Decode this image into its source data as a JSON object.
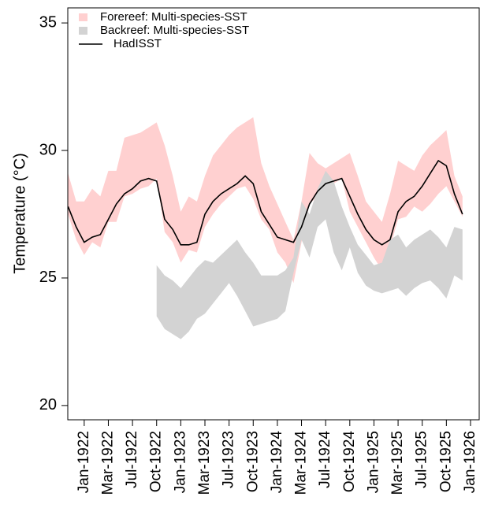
{
  "chart_data": {
    "type": "line",
    "ylabel": "Temperature (°C)",
    "legend": "top-left",
    "x": [
      1921.833,
      1921.917,
      1922,
      1922.083,
      1922.167,
      1922.25,
      1922.333,
      1922.417,
      1922.5,
      1922.583,
      1922.667,
      1922.75,
      1922.833,
      1922.917,
      1923,
      1923.083,
      1923.167,
      1923.25,
      1923.333,
      1923.417,
      1923.5,
      1923.583,
      1923.667,
      1923.75,
      1923.833,
      1923.917,
      1924,
      1924.083,
      1924.167,
      1924.25,
      1924.333,
      1924.417,
      1924.5,
      1924.583,
      1924.667,
      1924.75,
      1924.833,
      1924.917,
      1925,
      1925.083,
      1925.167,
      1925.25,
      1925.333,
      1925.417,
      1925.5,
      1925.583,
      1925.667,
      1925.75,
      1925.833,
      1925.917
    ],
    "series": [
      {
        "name": "Forereef: Multi-species-SST",
        "type": "band",
        "color": "#ffd0d0",
        "upper": [
          29.1,
          28.0,
          28.0,
          28.5,
          28.2,
          29.2,
          29.2,
          30.5,
          30.6,
          30.7,
          30.9,
          31.1,
          30.2,
          29.0,
          27.6,
          28.2,
          28.0,
          29.0,
          29.8,
          30.2,
          30.6,
          30.9,
          31.1,
          31.3,
          29.5,
          28.6,
          27.9,
          27.2,
          26.5,
          28.0,
          29.9,
          29.5,
          29.3,
          29.5,
          29.7,
          29.9,
          29.0,
          28.0,
          27.6,
          27.2,
          28.3,
          29.6,
          29.4,
          29.2,
          29.8,
          30.2,
          30.5,
          30.8,
          29.0,
          28.2
        ],
        "lower": [
          27.5,
          26.5,
          25.9,
          26.4,
          26.2,
          27.2,
          27.2,
          28.2,
          28.3,
          28.5,
          28.6,
          28.9,
          26.8,
          26.4,
          25.6,
          26.1,
          26.0,
          27.0,
          27.5,
          27.9,
          28.2,
          28.5,
          28.6,
          28.1,
          27.3,
          26.9,
          26.0,
          25.6,
          24.8,
          26.4,
          27.9,
          28.2,
          28.5,
          28.7,
          28.9,
          27.6,
          27.0,
          26.4,
          25.8,
          25.3,
          26.2,
          27.3,
          27.4,
          27.8,
          27.6,
          27.9,
          28.3,
          28.6,
          28.0,
          27.4
        ]
      },
      {
        "name": "Backreef: Multi-species-SST",
        "type": "band",
        "color": "#d3d3d3",
        "upper": [
          null,
          null,
          null,
          null,
          null,
          null,
          null,
          null,
          null,
          null,
          null,
          25.5,
          25.1,
          24.9,
          24.6,
          25.0,
          25.4,
          25.7,
          25.6,
          25.9,
          26.2,
          26.5,
          26.0,
          25.6,
          25.1,
          25.1,
          25.1,
          25.3,
          25.8,
          28.0,
          27.5,
          28.5,
          29.2,
          28.8,
          27.8,
          27.0,
          26.3,
          25.9,
          25.5,
          25.6,
          26.5,
          26.7,
          26.2,
          26.5,
          26.7,
          26.9,
          26.6,
          26.2,
          27.0,
          26.9
        ],
        "lower": [
          null,
          null,
          null,
          null,
          null,
          null,
          null,
          null,
          null,
          null,
          null,
          23.5,
          23.0,
          22.8,
          22.6,
          22.9,
          23.4,
          23.6,
          24.0,
          24.4,
          24.8,
          24.3,
          23.7,
          23.1,
          23.2,
          23.3,
          23.4,
          23.7,
          25.2,
          26.5,
          25.8,
          27.0,
          27.3,
          26.0,
          25.3,
          26.2,
          25.2,
          24.7,
          24.5,
          24.4,
          24.5,
          24.6,
          24.3,
          24.6,
          24.8,
          24.9,
          24.6,
          24.2,
          25.1,
          24.9
        ]
      },
      {
        "name": "HadISST",
        "type": "line",
        "color": "#000000",
        "values": [
          27.8,
          27.0,
          26.4,
          26.6,
          26.7,
          27.3,
          27.9,
          28.3,
          28.5,
          28.8,
          28.9,
          28.8,
          27.3,
          26.9,
          26.3,
          26.3,
          26.4,
          27.5,
          28.0,
          28.3,
          28.5,
          28.7,
          29.0,
          28.7,
          27.6,
          27.1,
          26.6,
          26.5,
          26.4,
          27.0,
          27.9,
          28.4,
          28.7,
          28.8,
          28.9,
          28.2,
          27.5,
          26.9,
          26.5,
          26.3,
          26.5,
          27.6,
          28.0,
          28.2,
          28.6,
          29.1,
          29.6,
          29.4,
          28.3,
          27.5
        ]
      }
    ],
    "xlim": [
      1921.83,
      1926.09
    ],
    "ylim": [
      19.44,
      35.59
    ],
    "yticks": [
      20,
      25,
      30,
      35
    ],
    "xticks": [
      {
        "value": 1922,
        "label": "Jan-1922"
      },
      {
        "value": 1922.25,
        "label": "Mar-1922"
      },
      {
        "value": 1922.5,
        "label": "Jul-1922"
      },
      {
        "value": 1922.75,
        "label": "Oct-1922"
      },
      {
        "value": 1923,
        "label": "Jan-1923"
      },
      {
        "value": 1923.25,
        "label": "Mar-1923"
      },
      {
        "value": 1923.5,
        "label": "Jul-1923"
      },
      {
        "value": 1923.75,
        "label": "Oct-1923"
      },
      {
        "value": 1924,
        "label": "Jan-1924"
      },
      {
        "value": 1924.25,
        "label": "Mar-1924"
      },
      {
        "value": 1924.5,
        "label": "Jul-1924"
      },
      {
        "value": 1924.75,
        "label": "Oct-1924"
      },
      {
        "value": 1925,
        "label": "Jan-1925"
      },
      {
        "value": 1925.25,
        "label": "Mar-1925"
      },
      {
        "value": 1925.5,
        "label": "Jul-1925"
      },
      {
        "value": 1925.75,
        "label": "Oct-1925"
      },
      {
        "value": 1926,
        "label": "Jan-1926"
      }
    ]
  }
}
